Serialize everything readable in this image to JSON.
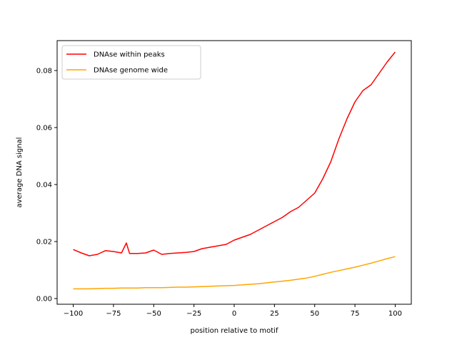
{
  "chart_data": {
    "type": "line",
    "title": "",
    "xlabel": "position relative to motif",
    "ylabel": "average DNA signal",
    "xlim": [
      -110,
      110
    ],
    "ylim": [
      -0.002,
      0.0905
    ],
    "grid": false,
    "legend_position": "top-left",
    "x_ticks": [
      -100,
      -75,
      -50,
      -25,
      0,
      25,
      50,
      75,
      100
    ],
    "x_tick_labels": [
      "−100",
      "−75",
      "−50",
      "−25",
      "0",
      "25",
      "50",
      "75",
      "100"
    ],
    "y_ticks": [
      0.0,
      0.02,
      0.04,
      0.06,
      0.08
    ],
    "y_tick_labels": [
      "0.00",
      "0.02",
      "0.04",
      "0.06",
      "0.08"
    ],
    "x": [
      -100,
      -95,
      -90,
      -85,
      -80,
      -75,
      -70,
      -67,
      -65,
      -60,
      -55,
      -50,
      -45,
      -40,
      -35,
      -30,
      -25,
      -20,
      -15,
      -10,
      -5,
      0,
      5,
      10,
      15,
      20,
      25,
      30,
      35,
      40,
      45,
      50,
      55,
      60,
      65,
      70,
      75,
      80,
      85,
      90,
      95,
      100
    ],
    "series": [
      {
        "name": "DNAse within peaks",
        "color": "#ff0000",
        "values": [
          0.0172,
          0.016,
          0.015,
          0.0155,
          0.0168,
          0.0165,
          0.016,
          0.0195,
          0.0158,
          0.0158,
          0.016,
          0.017,
          0.0155,
          0.0158,
          0.016,
          0.0162,
          0.0165,
          0.0175,
          0.018,
          0.0185,
          0.019,
          0.0205,
          0.0215,
          0.0225,
          0.024,
          0.0255,
          0.027,
          0.0285,
          0.0305,
          0.032,
          0.0345,
          0.037,
          0.042,
          0.048,
          0.056,
          0.063,
          0.069,
          0.073,
          0.075,
          0.079,
          0.083,
          0.0865
        ]
      },
      {
        "name": "DNAse genome wide",
        "color": "#ffa500",
        "values": [
          0.0034,
          0.0034,
          0.0034,
          0.0035,
          0.0036,
          0.0036,
          0.0037,
          0.0037,
          0.0037,
          0.0037,
          0.0038,
          0.0038,
          0.0038,
          0.0039,
          0.004,
          0.004,
          0.0041,
          0.0042,
          0.0043,
          0.0044,
          0.0045,
          0.0046,
          0.0048,
          0.005,
          0.0052,
          0.0055,
          0.0058,
          0.0061,
          0.0064,
          0.0068,
          0.0072,
          0.0078,
          0.0085,
          0.0092,
          0.0098,
          0.0104,
          0.011,
          0.0117,
          0.0124,
          0.0132,
          0.014,
          0.0147
        ]
      }
    ]
  }
}
